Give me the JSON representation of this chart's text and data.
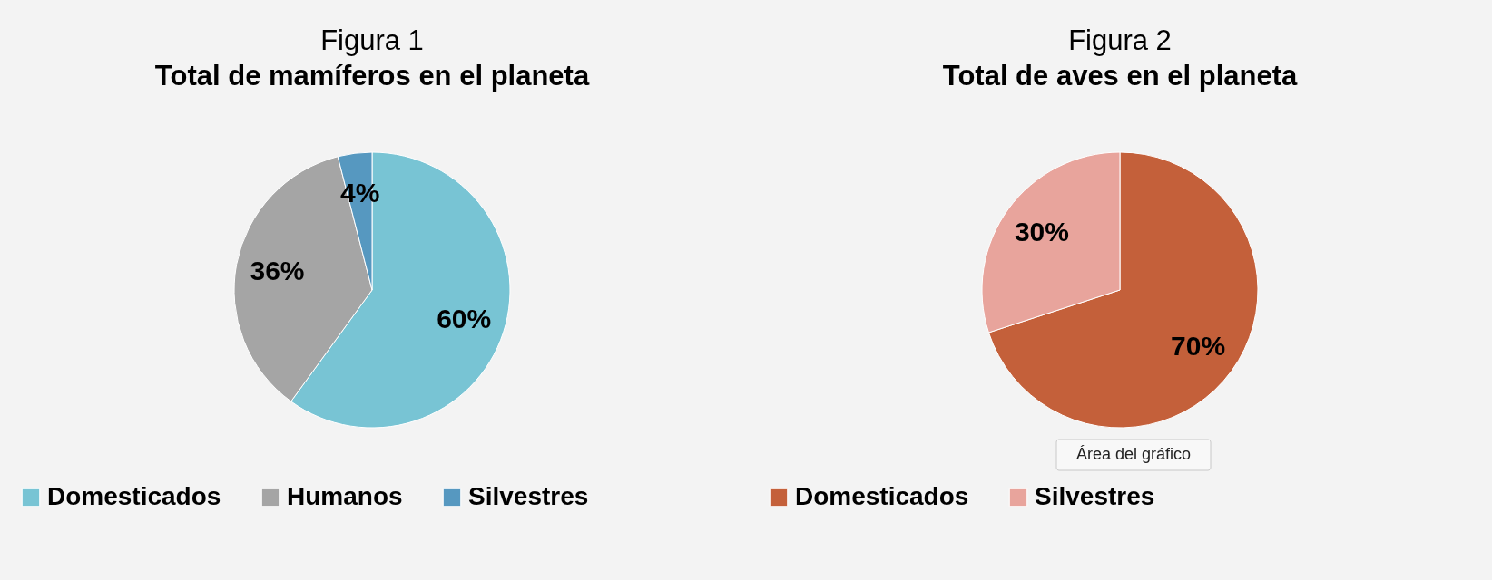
{
  "chart_data": [
    {
      "type": "pie",
      "title": "Figura 1",
      "subtitle": "Total de mamíferos en el planeta",
      "categories": [
        "Domesticados",
        "Humanos",
        "Silvestres"
      ],
      "values": [
        60,
        36,
        4
      ],
      "colors": [
        "#78c4d4",
        "#a5a5a5",
        "#5698c0"
      ],
      "value_labels": [
        "60%",
        "36%",
        "4%"
      ],
      "legend": "bottom"
    },
    {
      "type": "pie",
      "title": "Figura 2",
      "subtitle": "Total de aves en el planeta",
      "categories": [
        "Domesticados",
        "Silvestres"
      ],
      "values": [
        70,
        30
      ],
      "colors": [
        "#c4603a",
        "#e8a49c"
      ],
      "value_labels": [
        "70%",
        "30%"
      ],
      "legend": "bottom",
      "annotations": [
        "Área del gráfico"
      ]
    }
  ]
}
